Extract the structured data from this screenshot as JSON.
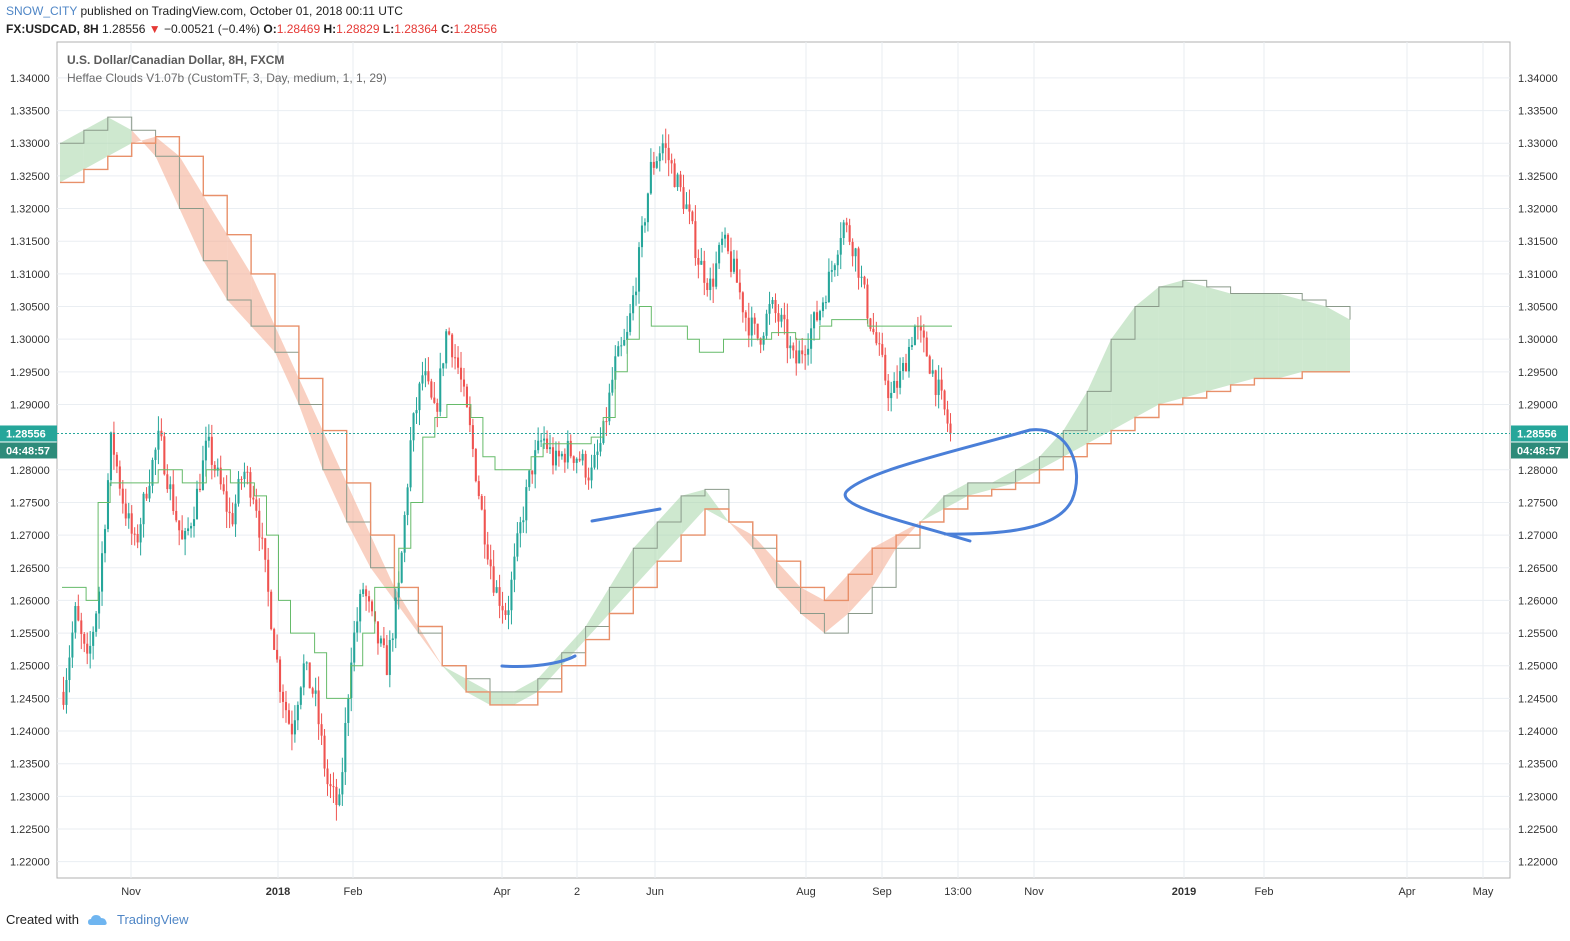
{
  "header": {
    "user": "SNOW_CITY",
    "published_text": "published on TradingView.com, October 01, 2018 00:11 UTC",
    "symbol": "FX:USDCAD, 8H",
    "last": "1.28556",
    "change": "−0.00521 (−0.4%)",
    "o_label": "O:",
    "o": "1.28469",
    "h_label": "H:",
    "h": "1.28829",
    "l_label": "L:",
    "l": "1.28364",
    "c_label": "C:",
    "c": "1.28556"
  },
  "legend": {
    "title": "U.S. Dollar/Canadian Dollar, 8H, FXCM",
    "indicator": "Heffae Clouds V1.07b (CustomTF, 3, Day, medium, 1, 1, 29)"
  },
  "price_tag": {
    "value": "1.28556",
    "timer": "04:48:57"
  },
  "footer": {
    "created_with": "Created with",
    "brand": "TradingView"
  },
  "colors": {
    "up": "#26a69a",
    "down": "#ef5350",
    "bull_cloud": "#a5d6a7",
    "bear_cloud": "#f4a98e",
    "drawing": "#4a7fd8",
    "price_line": "#26a69a"
  },
  "chart_data": {
    "type": "candlestick",
    "title": "U.S. Dollar/Canadian Dollar, 8H, FXCM",
    "ylim": [
      1.2175,
      1.3455
    ],
    "y_ticks": [
      "1.34000",
      "1.33500",
      "1.33000",
      "1.32500",
      "1.32000",
      "1.31500",
      "1.31000",
      "1.30500",
      "1.30000",
      "1.29500",
      "1.29000",
      "1.28556",
      "1.28000",
      "1.27500",
      "1.27000",
      "1.26500",
      "1.26000",
      "1.25500",
      "1.25000",
      "1.24500",
      "1.24000",
      "1.23500",
      "1.23000",
      "1.22500",
      "1.22000"
    ],
    "x_ticks": [
      "Nov",
      "2018",
      "Feb",
      "Apr",
      "2",
      "Jun",
      "Aug",
      "Sep",
      "13:00",
      "Nov",
      "2019",
      "Feb",
      "Apr",
      "May"
    ],
    "x_ticks_bold": [
      "2018",
      "2019"
    ],
    "price_path": [
      1.246,
      1.258,
      1.25,
      1.262,
      1.285,
      1.275,
      1.268,
      1.278,
      1.285,
      1.276,
      1.268,
      1.275,
      1.284,
      1.278,
      1.272,
      1.28,
      1.276,
      1.262,
      1.248,
      1.24,
      1.25,
      1.245,
      1.232,
      1.228,
      1.252,
      1.262,
      1.255,
      1.25,
      1.262,
      1.285,
      1.295,
      1.288,
      1.302,
      1.295,
      1.285,
      1.272,
      1.262,
      1.258,
      1.27,
      1.28,
      1.285,
      1.281,
      1.283,
      1.282,
      1.279,
      1.285,
      1.296,
      1.3,
      1.312,
      1.326,
      1.33,
      1.325,
      1.32,
      1.312,
      1.308,
      1.315,
      1.31,
      1.303,
      1.3,
      1.305,
      1.302,
      1.296,
      1.3,
      1.304,
      1.31,
      1.318,
      1.314,
      1.305,
      1.298,
      1.291,
      1.295,
      1.302,
      1.298,
      1.292,
      1.2856
    ],
    "tenkan": [
      1.262,
      1.262,
      1.26,
      1.275,
      1.278,
      1.278,
      1.278,
      1.278,
      1.28,
      1.28,
      1.278,
      1.278,
      1.28,
      1.28,
      1.278,
      1.278,
      1.276,
      1.27,
      1.26,
      1.255,
      1.255,
      1.252,
      1.245,
      1.245,
      1.25,
      1.255,
      1.262,
      1.262,
      1.268,
      1.275,
      1.285,
      1.288,
      1.29,
      1.29,
      1.288,
      1.282,
      1.28,
      1.28,
      1.28,
      1.282,
      1.284,
      1.284,
      1.284,
      1.284,
      1.285,
      1.288,
      1.295,
      1.3,
      1.305,
      1.302,
      1.302,
      1.302,
      1.3,
      1.298,
      1.298,
      1.3,
      1.3,
      1.3,
      1.3,
      1.301,
      1.301,
      1.3,
      1.3,
      1.302,
      1.303,
      1.303,
      1.303,
      1.302,
      1.302,
      1.302,
      1.302,
      1.302,
      1.302,
      1.302,
      1.302
    ],
    "cloud_a": [
      1.33,
      1.332,
      1.334,
      1.332,
      1.328,
      1.32,
      1.312,
      1.306,
      1.302,
      1.298,
      1.29,
      1.28,
      1.272,
      1.265,
      1.26,
      1.255,
      1.25,
      1.248,
      1.246,
      1.246,
      1.248,
      1.252,
      1.256,
      1.262,
      1.268,
      1.272,
      1.276,
      1.277,
      1.272,
      1.268,
      1.262,
      1.258,
      1.255,
      1.258,
      1.262,
      1.268,
      1.272,
      1.276,
      1.278,
      1.278,
      1.28,
      1.282,
      1.286,
      1.292,
      1.3,
      1.305,
      1.308,
      1.309,
      1.308,
      1.307,
      1.307,
      1.307,
      1.306,
      1.305,
      1.303
    ],
    "cloud_b": [
      1.324,
      1.326,
      1.328,
      1.33,
      1.331,
      1.328,
      1.322,
      1.316,
      1.31,
      1.302,
      1.294,
      1.286,
      1.278,
      1.27,
      1.262,
      1.256,
      1.25,
      1.246,
      1.244,
      1.244,
      1.246,
      1.25,
      1.254,
      1.258,
      1.262,
      1.266,
      1.27,
      1.274,
      1.272,
      1.27,
      1.266,
      1.262,
      1.26,
      1.264,
      1.268,
      1.27,
      1.272,
      1.274,
      1.276,
      1.277,
      1.278,
      1.28,
      1.282,
      1.284,
      1.286,
      1.288,
      1.29,
      1.291,
      1.292,
      1.293,
      1.294,
      1.294,
      1.295,
      1.295,
      1.295
    ],
    "drawings": [
      "ellipse",
      "line",
      "line",
      "arc"
    ]
  }
}
